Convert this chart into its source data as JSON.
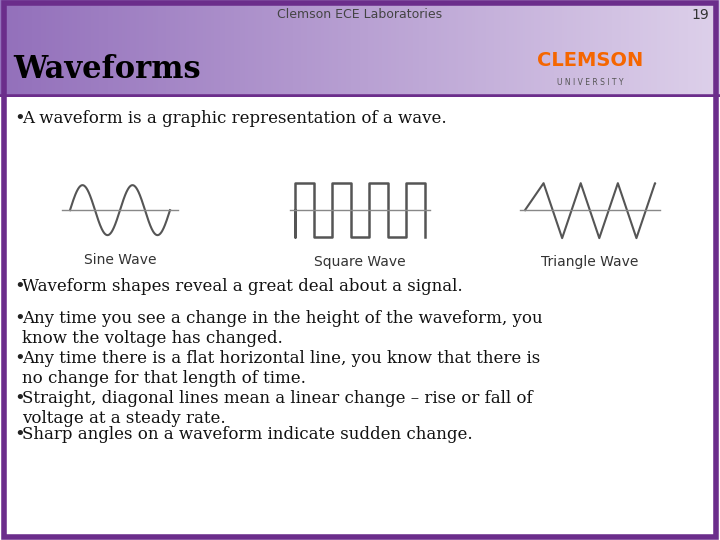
{
  "header_text": "Clemson ECE Laboratories",
  "page_number": "19",
  "title": "Waveforms",
  "header_bg_color": "#9370BB",
  "header_bg_gradient_end": "#E8D8F0",
  "border_color": "#6B2D8B",
  "bg_color": "#FFFFFF",
  "title_color": "#000000",
  "title_fontsize": 22,
  "header_fontsize": 9,
  "bullet_fontsize": 12,
  "wave_label_fontsize": 10,
  "bullet1": "A waveform is a graphic representation of a wave.",
  "bullet2": "Waveform shapes reveal a great deal about a signal.",
  "bullet3": "Any time you see a change in the height of the waveform, you\nknow the voltage has changed.",
  "bullet4": "Any time there is a flat horizontal line, you know that there is\nno change for that length of time.",
  "bullet5": "Straight, diagonal lines mean a linear change – rise or fall of\nvoltage at a steady rate.",
  "bullet6": "Sharp angles on a waveform indicate sudden change.",
  "sine_label": "Sine Wave",
  "square_label": "Square Wave",
  "triangle_label": "Triangle Wave",
  "wave_color": "#555555",
  "axis_line_color": "#888888"
}
